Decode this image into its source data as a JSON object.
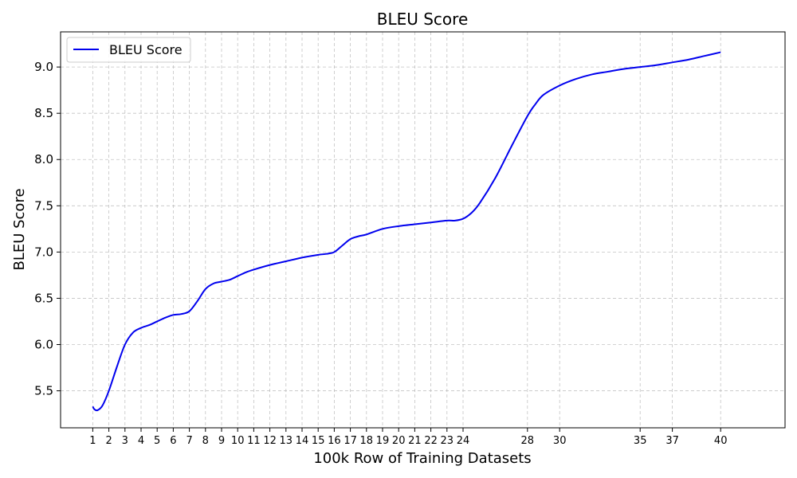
{
  "chart_data": {
    "type": "line",
    "title": "BLEU Score",
    "xlabel": "100k Row of Training Datasets",
    "ylabel": "BLEU Score",
    "xlim": [
      -1,
      44
    ],
    "ylim": [
      5.1,
      9.38
    ],
    "x_ticks": [
      1,
      2,
      3,
      4,
      5,
      6,
      7,
      8,
      9,
      10,
      11,
      12,
      13,
      14,
      15,
      16,
      17,
      18,
      19,
      20,
      21,
      22,
      23,
      24,
      28,
      30,
      35,
      37,
      40
    ],
    "y_ticks": [
      5.5,
      6.0,
      6.5,
      7.0,
      7.5,
      8.0,
      8.5,
      9.0
    ],
    "grid": true,
    "legend_position": "top-left",
    "series": [
      {
        "name": "BLEU Score",
        "color": "#0000ee",
        "points": [
          [
            1,
            5.33
          ],
          [
            1.1,
            5.3
          ],
          [
            1.3,
            5.29
          ],
          [
            1.6,
            5.34
          ],
          [
            2,
            5.5
          ],
          [
            2.5,
            5.76
          ],
          [
            3,
            6.0
          ],
          [
            3.5,
            6.13
          ],
          [
            4,
            6.18
          ],
          [
            4.5,
            6.21
          ],
          [
            5,
            6.25
          ],
          [
            5.5,
            6.29
          ],
          [
            6,
            6.32
          ],
          [
            6.5,
            6.33
          ],
          [
            7,
            6.36
          ],
          [
            7.5,
            6.47
          ],
          [
            8,
            6.6
          ],
          [
            8.5,
            6.66
          ],
          [
            9,
            6.68
          ],
          [
            9.5,
            6.7
          ],
          [
            10,
            6.74
          ],
          [
            10.5,
            6.78
          ],
          [
            11,
            6.81
          ],
          [
            12,
            6.86
          ],
          [
            13,
            6.9
          ],
          [
            14,
            6.94
          ],
          [
            15,
            6.97
          ],
          [
            15.5,
            6.98
          ],
          [
            16,
            7.0
          ],
          [
            16.5,
            7.07
          ],
          [
            17,
            7.14
          ],
          [
            17.5,
            7.17
          ],
          [
            18,
            7.19
          ],
          [
            19,
            7.25
          ],
          [
            20,
            7.28
          ],
          [
            21,
            7.3
          ],
          [
            22,
            7.32
          ],
          [
            23,
            7.34
          ],
          [
            23.5,
            7.34
          ],
          [
            24,
            7.36
          ],
          [
            24.5,
            7.42
          ],
          [
            25,
            7.52
          ],
          [
            26,
            7.8
          ],
          [
            27,
            8.14
          ],
          [
            28,
            8.47
          ],
          [
            28.5,
            8.6
          ],
          [
            29,
            8.7
          ],
          [
            30,
            8.8
          ],
          [
            31,
            8.87
          ],
          [
            32,
            8.92
          ],
          [
            33,
            8.95
          ],
          [
            34,
            8.98
          ],
          [
            35,
            9.0
          ],
          [
            36,
            9.02
          ],
          [
            37,
            9.05
          ],
          [
            38,
            9.08
          ],
          [
            39,
            9.12
          ],
          [
            40,
            9.16
          ]
        ]
      }
    ]
  }
}
